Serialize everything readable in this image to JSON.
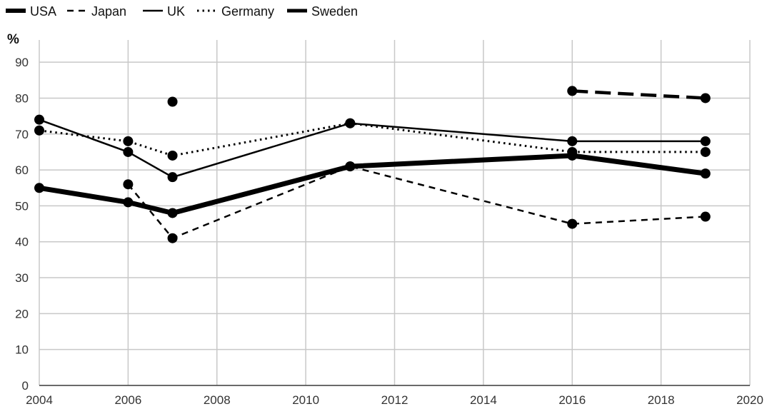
{
  "chart_data": {
    "type": "line",
    "title": "",
    "xlabel": "",
    "ylabel": "%",
    "xlim": [
      2004,
      2020
    ],
    "ylim": [
      0,
      95
    ],
    "x_ticks": [
      2004,
      2006,
      2008,
      2010,
      2012,
      2014,
      2016,
      2018,
      2020
    ],
    "y_ticks": [
      0,
      10,
      20,
      30,
      40,
      50,
      60,
      70,
      80,
      90
    ],
    "grid": true,
    "legend_position": "top-left",
    "series": [
      {
        "name": "USA",
        "style": "thick-solid",
        "color": "#000000",
        "points": [
          [
            2004,
            55
          ],
          [
            2006,
            51
          ],
          [
            2007,
            48
          ],
          [
            2011,
            61
          ],
          [
            2016,
            64
          ],
          [
            2019,
            59
          ]
        ]
      },
      {
        "name": "Japan",
        "style": "dashed",
        "color": "#000000",
        "points": [
          [
            2006,
            56
          ],
          [
            2007,
            41
          ],
          [
            2011,
            61
          ],
          [
            2016,
            45
          ],
          [
            2019,
            47
          ]
        ]
      },
      {
        "name": "UK",
        "style": "solid",
        "color": "#000000",
        "points": [
          [
            2004,
            74
          ],
          [
            2006,
            65
          ],
          [
            2007,
            58
          ],
          [
            2011,
            73
          ],
          [
            2016,
            68
          ],
          [
            2019,
            68
          ]
        ]
      },
      {
        "name": "Germany",
        "style": "dotted",
        "color": "#000000",
        "points": [
          [
            2004,
            71
          ],
          [
            2006,
            68
          ],
          [
            2007,
            64
          ],
          [
            2011,
            73
          ],
          [
            2016,
            65
          ],
          [
            2019,
            65
          ]
        ]
      },
      {
        "name": "Sweden",
        "style": "long-dashed",
        "color": "#000000",
        "points": [
          [
            2007,
            79
          ],
          [
            2016,
            82
          ],
          [
            2019,
            80
          ]
        ]
      }
    ]
  }
}
